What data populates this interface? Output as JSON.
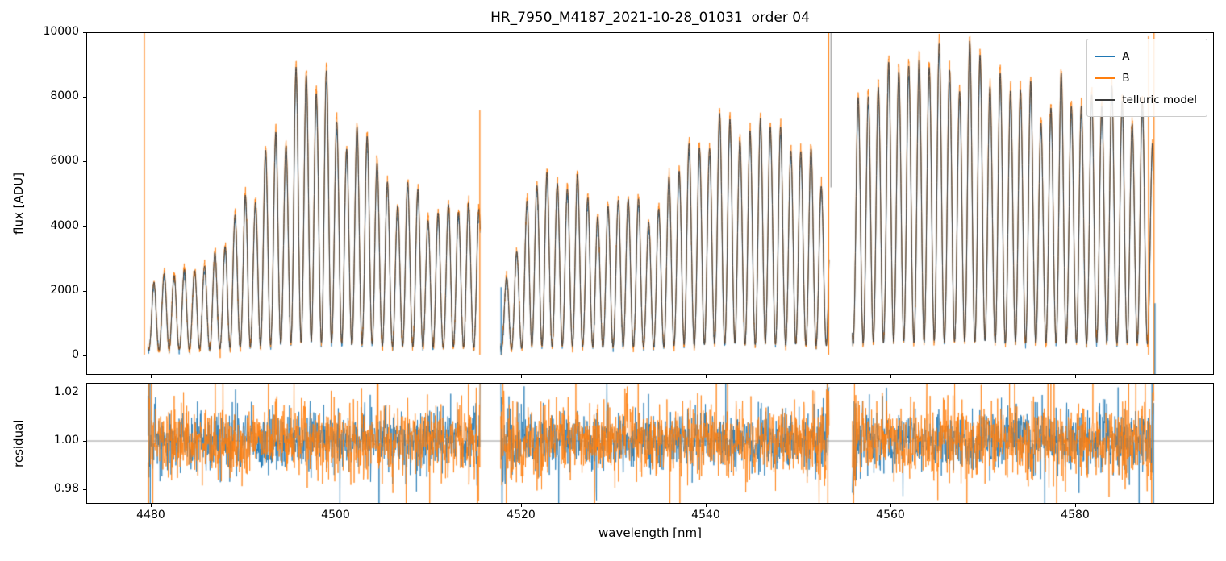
{
  "chart_data": {
    "type": "line",
    "title": "HR_7950_M4187_2021-10-28_01031  order 04",
    "xlabel": "wavelength [nm]",
    "xlim": [
      4473,
      4595
    ],
    "xticks": [
      4480,
      4500,
      4520,
      4540,
      4560,
      4580
    ],
    "flux_panel": {
      "ylabel": "flux [ADU]",
      "ylim": [
        -600,
        10000
      ],
      "yticks": [
        {
          "v": 0,
          "label": "0"
        },
        {
          "v": 2000,
          "label": "2000"
        },
        {
          "v": 4000,
          "label": "4000"
        },
        {
          "v": 6000,
          "label": "6000"
        },
        {
          "v": 8000,
          "label": "8000"
        },
        {
          "v": 10000,
          "label": "10000"
        }
      ]
    },
    "residual_panel": {
      "ylabel": "residual",
      "ylim": [
        0.974,
        1.024
      ],
      "yticks": [
        {
          "v": 0.98,
          "label": "0.98"
        },
        {
          "v": 1.0,
          "label": "1.00"
        },
        {
          "v": 1.02,
          "label": "1.02"
        }
      ],
      "hline": 1.0
    },
    "legend": [
      {
        "label": "A",
        "color": "#1f77b4"
      },
      {
        "label": "B",
        "color": "#ff7f0e"
      },
      {
        "label": "telluric model",
        "color": "#3a3a3a"
      }
    ],
    "series": [
      {
        "name": "A",
        "color": "#1f77b4",
        "scale": 0.965,
        "noise_sigma": 65
      },
      {
        "name": "B",
        "color": "#ff7f0e",
        "scale": 1.018,
        "noise_sigma": 80
      },
      {
        "name": "telluric model",
        "color": "#3a3a3a",
        "scale": 1.0,
        "noise_sigma": 0
      }
    ],
    "line_period_nm": 1.1,
    "flux_baseline": 60,
    "flux_step": 0.02,
    "segments": [
      {
        "x0": 4479.6,
        "x1": 4515.6,
        "envelope": [
          [
            4479.6,
            1700
          ],
          [
            4481.6,
            2700
          ],
          [
            4483.6,
            2400
          ],
          [
            4485.6,
            2700
          ],
          [
            4487.6,
            3300
          ],
          [
            4489.6,
            4400
          ],
          [
            4491.3,
            5200
          ],
          [
            4492.8,
            6700
          ],
          [
            4494.3,
            6200
          ],
          [
            4496.0,
            9400
          ],
          [
            4497.4,
            8400
          ],
          [
            4498.8,
            8100
          ],
          [
            4500.4,
            7200
          ],
          [
            4501.8,
            6500
          ],
          [
            4503.2,
            6800
          ],
          [
            4504.8,
            5700
          ],
          [
            4506.2,
            4800
          ],
          [
            4507.8,
            5100
          ],
          [
            4509.4,
            4600
          ],
          [
            4511.4,
            4300
          ],
          [
            4513.4,
            4500
          ],
          [
            4515.6,
            4600
          ]
        ]
      },
      {
        "x0": 4517.8,
        "x1": 4553.4,
        "envelope": [
          [
            4517.8,
            2100
          ],
          [
            4519.4,
            3000
          ],
          [
            4521.2,
            5400
          ],
          [
            4523.2,
            5200
          ],
          [
            4525.2,
            5600
          ],
          [
            4527.2,
            4700
          ],
          [
            4529.0,
            4300
          ],
          [
            4530.6,
            4900
          ],
          [
            4532.6,
            4500
          ],
          [
            4534.6,
            4400
          ],
          [
            4536.4,
            5200
          ],
          [
            4538.0,
            6600
          ],
          [
            4539.6,
            6300
          ],
          [
            4541.4,
            6900
          ],
          [
            4543.4,
            7500
          ],
          [
            4545.0,
            6400
          ],
          [
            4546.6,
            7500
          ],
          [
            4548.6,
            6700
          ],
          [
            4550.6,
            6100
          ],
          [
            4553.4,
            5400
          ]
        ]
      },
      {
        "x0": 4555.9,
        "x1": 4588.6,
        "envelope": [
          [
            4555.9,
            6800
          ],
          [
            4557.6,
            8700
          ],
          [
            4559.6,
            8100
          ],
          [
            4561.2,
            9300
          ],
          [
            4562.8,
            8900
          ],
          [
            4564.6,
            9200
          ],
          [
            4566.6,
            8800
          ],
          [
            4568.6,
            9100
          ],
          [
            4570.6,
            8800
          ],
          [
            4572.6,
            8400
          ],
          [
            4574.6,
            8000
          ],
          [
            4576.6,
            7700
          ],
          [
            4578.6,
            8000
          ],
          [
            4580.6,
            7800
          ],
          [
            4582.6,
            8000
          ],
          [
            4584.6,
            7700
          ],
          [
            4586.2,
            7900
          ],
          [
            4587.8,
            7200
          ],
          [
            4588.6,
            6000
          ]
        ]
      }
    ],
    "spikes": [
      {
        "x": 4479.2,
        "y0": 0,
        "y1": 10000,
        "color": "#ff7f0e"
      },
      {
        "x": 4515.55,
        "y0": 0,
        "y1": 7600,
        "color": "#ff7f0e"
      },
      {
        "x": 4517.85,
        "y0": 0,
        "y1": 2100,
        "color": "#1f77b4"
      },
      {
        "x": 4553.35,
        "y0": 0,
        "y1": 10000,
        "color": "#ff7f0e"
      },
      {
        "x": 4553.6,
        "y0": 5200,
        "y1": 10000,
        "color": "#999999"
      },
      {
        "x": 4588.0,
        "y0": 0,
        "y1": 9900,
        "color": "#ff7f0e"
      },
      {
        "x": 4588.6,
        "y0": -600,
        "y1": 10000,
        "color": "#ff7f0e"
      },
      {
        "x": 4588.7,
        "y0": -600,
        "y1": 1600,
        "color": "#1f77b4"
      }
    ],
    "residual_noise": {
      "sigma_a": 0.006,
      "sigma_b": 0.0075,
      "step": 0.035,
      "edge_boost": 2.2,
      "edge_width": 0.35,
      "outlier_prob": 0.04,
      "outlier_mult": 2.2
    },
    "seed": 20211028
  }
}
